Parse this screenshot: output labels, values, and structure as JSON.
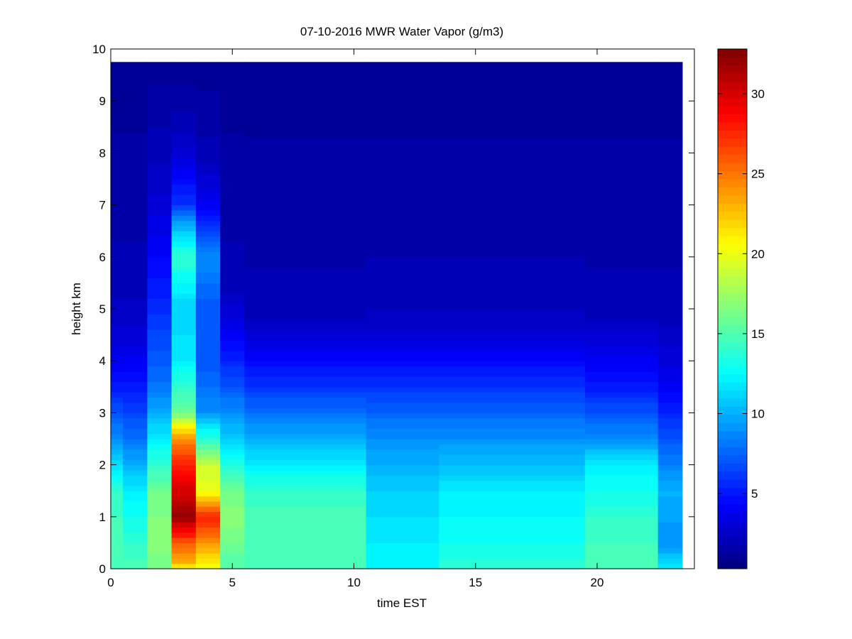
{
  "chart_data": {
    "type": "heatmap",
    "title": "07-10-2016 MWR Water Vapor (g/m3)",
    "xlabel": "time EST",
    "ylabel": "height km",
    "xlim": [
      0,
      24
    ],
    "ylim": [
      0,
      10
    ],
    "x_ticks": [
      0,
      5,
      10,
      15,
      20
    ],
    "y_ticks": [
      0,
      1,
      2,
      3,
      4,
      5,
      6,
      7,
      8,
      9,
      10
    ],
    "colormap": "jet",
    "colorbar": {
      "range": [
        0.3,
        32.8
      ],
      "ticks": [
        5,
        10,
        15,
        20,
        25,
        30
      ]
    },
    "cell_height_km": 0.1,
    "data_top_km": 9.75,
    "x": [
      0.25,
      0.75,
      1.25,
      1.75,
      2.25,
      2.75,
      3.25,
      3.75,
      4.25,
      4.75,
      5.25,
      5.75,
      6.25,
      6.75,
      7.25,
      7.75,
      8.25,
      8.75,
      9.25,
      9.75,
      10.25,
      10.75,
      11.25,
      11.75,
      12.25,
      12.75,
      13.25,
      13.75,
      14.25,
      14.75,
      15.25,
      15.75,
      16.25,
      16.75,
      17.25,
      17.75,
      18.25,
      18.75,
      19.25,
      19.75,
      20.25,
      20.75,
      21.25,
      21.75,
      22.25,
      22.75,
      23.25
    ],
    "column_profiles": [
      {
        "x": [
          0,
          0.5
        ],
        "profile": [
          [
            0,
            15
          ],
          [
            0.5,
            15
          ],
          [
            1.5,
            14
          ],
          [
            2.5,
            9
          ],
          [
            3.5,
            5
          ],
          [
            4.5,
            3
          ],
          [
            5.5,
            2
          ],
          [
            9.75,
            1
          ]
        ]
      },
      {
        "x": [
          0.5,
          1.5
        ],
        "profile": [
          [
            0,
            15
          ],
          [
            0.5,
            14
          ],
          [
            1.5,
            12
          ],
          [
            2.5,
            8
          ],
          [
            3.5,
            5
          ],
          [
            4.5,
            3
          ],
          [
            5.5,
            2
          ],
          [
            9.75,
            1
          ]
        ]
      },
      {
        "x": [
          1.5,
          2.5
        ],
        "profile": [
          [
            0,
            16
          ],
          [
            0.5,
            17
          ],
          [
            1.5,
            16
          ],
          [
            2.5,
            12
          ],
          [
            3.5,
            8
          ],
          [
            5.5,
            5
          ],
          [
            7.5,
            2.5
          ],
          [
            9.75,
            1
          ]
        ]
      },
      {
        "x": [
          2.5,
          3.5
        ],
        "profile": [
          [
            0,
            20
          ],
          [
            0.1,
            23
          ],
          [
            0.5,
            26
          ],
          [
            1.0,
            32
          ],
          [
            1.5,
            30
          ],
          [
            2.0,
            28
          ],
          [
            2.5,
            24
          ],
          [
            2.8,
            20
          ],
          [
            3.0,
            16
          ],
          [
            4.0,
            12
          ],
          [
            5.0,
            11
          ],
          [
            6.0,
            14
          ],
          [
            6.6,
            10
          ],
          [
            7.0,
            6
          ],
          [
            8.0,
            3
          ],
          [
            9.0,
            1.5
          ],
          [
            9.75,
            1
          ]
        ]
      },
      {
        "x": [
          3.5,
          4.5
        ],
        "profile": [
          [
            0,
            20
          ],
          [
            0.5,
            24
          ],
          [
            1.0,
            28
          ],
          [
            1.5,
            20
          ],
          [
            2.0,
            19
          ],
          [
            2.5,
            14
          ],
          [
            3.0,
            9
          ],
          [
            4.0,
            7
          ],
          [
            5.0,
            7
          ],
          [
            6.0,
            9
          ],
          [
            6.6,
            6
          ],
          [
            7.0,
            4
          ],
          [
            8.0,
            2
          ],
          [
            9.75,
            1
          ]
        ]
      },
      {
        "x": [
          4.5,
          5.5
        ],
        "profile": [
          [
            0,
            15
          ],
          [
            1.0,
            17
          ],
          [
            1.5,
            16
          ],
          [
            2.5,
            11
          ],
          [
            3.5,
            7
          ],
          [
            4.5,
            4
          ],
          [
            5.5,
            2
          ],
          [
            9.75,
            1
          ]
        ]
      },
      {
        "x": [
          5.5,
          10.5
        ],
        "profile": [
          [
            0,
            15
          ],
          [
            1.0,
            15
          ],
          [
            1.5,
            14
          ],
          [
            2.5,
            10
          ],
          [
            3.5,
            6
          ],
          [
            4.5,
            3
          ],
          [
            5.0,
            2
          ],
          [
            9.75,
            1
          ]
        ]
      },
      {
        "x": [
          10.5,
          13.5
        ],
        "profile": [
          [
            0,
            12
          ],
          [
            0.5,
            12
          ],
          [
            1.5,
            11
          ],
          [
            2.5,
            9
          ],
          [
            3.5,
            6
          ],
          [
            4.5,
            3
          ],
          [
            5.2,
            2
          ],
          [
            9.75,
            1
          ]
        ]
      },
      {
        "x": [
          13.5,
          19.5
        ],
        "profile": [
          [
            0,
            14
          ],
          [
            0.5,
            13
          ],
          [
            1.5,
            12
          ],
          [
            2.5,
            9
          ],
          [
            3.5,
            6
          ],
          [
            4.5,
            3
          ],
          [
            5.2,
            2
          ],
          [
            9.75,
            1
          ]
        ]
      },
      {
        "x": [
          19.5,
          22.5
        ],
        "profile": [
          [
            0,
            15
          ],
          [
            1.0,
            14
          ],
          [
            2.0,
            12
          ],
          [
            2.5,
            9
          ],
          [
            3.5,
            5
          ],
          [
            4.5,
            3
          ],
          [
            5.0,
            2
          ],
          [
            9.75,
            1
          ]
        ]
      },
      {
        "x": [
          22.5,
          23.5
        ],
        "profile": [
          [
            0,
            12
          ],
          [
            0.5,
            9
          ],
          [
            1.5,
            10
          ],
          [
            2.5,
            7
          ],
          [
            3.5,
            4
          ],
          [
            4.5,
            2.5
          ],
          [
            5.0,
            2
          ],
          [
            9.75,
            1
          ]
        ]
      }
    ]
  }
}
